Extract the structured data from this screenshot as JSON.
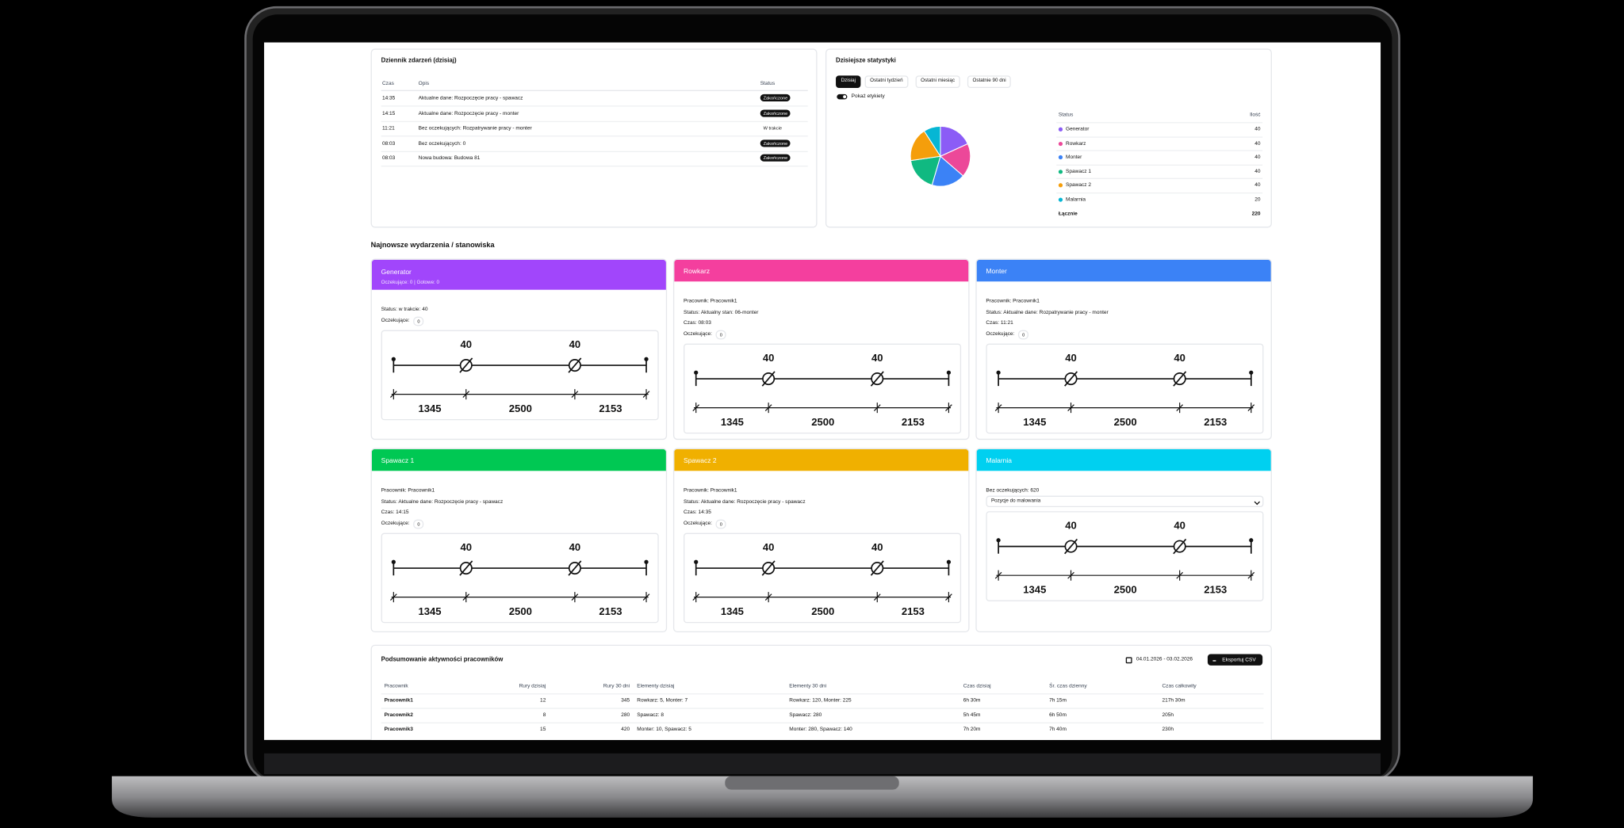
{
  "event_log": {
    "title": "Dziennik zdarzeń (dzisiaj)",
    "columns": [
      "Czas",
      "Opis",
      "Status"
    ],
    "rows": [
      [
        "14:35",
        "Aktualne dane: Rozpoczęcie pracy - spawacz",
        "Zakończone"
      ],
      [
        "14:15",
        "Aktualne dane: Rozpoczęcie pracy - monter",
        "Zakończone"
      ],
      [
        "11:21",
        "Bez oczekujących: Rozpatrywanie pracy - monter",
        "W trakcie"
      ],
      [
        "08:03",
        "Bez oczekujących: 0",
        "Zakończone"
      ],
      [
        "08:03",
        "Nowa budowa: Budowa 81",
        "Zakończone"
      ]
    ]
  },
  "stats": {
    "title": "Dzisiejsze statystyki",
    "tabs": [
      "Dzisiaj",
      "Ostatni tydzień",
      "Ostatni miesiąc",
      "Ostatnie 90 dni"
    ],
    "toggle": "Pokaż etykiety",
    "columns": [
      "Status",
      "Ilość"
    ],
    "rows": [
      {
        "name": "Generator",
        "color": "#8b5cf6",
        "value": 40
      },
      {
        "name": "Rowkarz",
        "color": "#ec4899",
        "value": 40
      },
      {
        "name": "Monter",
        "color": "#3b82f6",
        "value": 40
      },
      {
        "name": "Spawacz 1",
        "color": "#10b981",
        "value": 40
      },
      {
        "name": "Spawacz 2",
        "color": "#f59e0b",
        "value": 40
      },
      {
        "name": "Malarnia",
        "color": "#06b6d4",
        "value": 20
      }
    ],
    "total_label": "Łącznie",
    "total": 220
  },
  "stations_heading": "Najnowsze wydarzenia / stanowiska",
  "stations": [
    {
      "name": "Generator",
      "color": "#a146fb",
      "subtitle": "Oczekujące: 0 | Gotowe: 0",
      "lines": [
        "Status: w trakcie: 40"
      ],
      "waiting_label": "Oczekujące:",
      "waiting": 0,
      "diagram": {
        "top": [
          40,
          40
        ],
        "bottom": [
          1345,
          2500,
          2153
        ]
      }
    },
    {
      "name": "Rowkarz",
      "color": "#f43f9e",
      "lines": [
        "Pracownik: Pracownik1",
        "Status: Aktualny stan: 06-monter",
        "Czas: 08:03"
      ],
      "waiting_label": "Oczekujące:",
      "waiting": 0,
      "diagram": {
        "top": [
          40,
          40
        ],
        "bottom": [
          1345,
          2500,
          2153
        ]
      }
    },
    {
      "name": "Monter",
      "color": "#3b82f6",
      "lines": [
        "Pracownik: Pracownik1",
        "Status: Aktualne dane: Rozpatrywanie pracy - monter",
        "Czas: 11:21"
      ],
      "waiting_label": "Oczekujące:",
      "waiting": 0,
      "diagram": {
        "top": [
          40,
          40
        ],
        "bottom": [
          1345,
          2500,
          2153
        ]
      }
    },
    {
      "name": "Spawacz 1",
      "color": "#00c853",
      "lines": [
        "Pracownik: Pracownik1",
        "Status: Aktualne dane: Rozpoczęcie pracy - spawacz",
        "Czas: 14:15"
      ],
      "waiting_label": "Oczekujące:",
      "waiting": 0,
      "diagram": {
        "top": [
          40,
          40
        ],
        "bottom": [
          1345,
          2500,
          2153
        ]
      }
    },
    {
      "name": "Spawacz 2",
      "color": "#f0b000",
      "lines": [
        "Pracownik: Pracownik1",
        "Status: Aktualne dane: Rozpoczęcie pracy - spawacz",
        "Czas: 14:35"
      ],
      "waiting_label": "Oczekujące:",
      "waiting": 0,
      "diagram": {
        "top": [
          40,
          40
        ],
        "bottom": [
          1345,
          2500,
          2153
        ]
      }
    },
    {
      "name": "Malarnia",
      "color": "#00d0f0",
      "lines": [
        "Bez oczekujących: 620"
      ],
      "select": "Pozycje do malowania",
      "diagram": {
        "top": [
          40,
          40
        ],
        "bottom": [
          1345,
          2500,
          2153
        ]
      }
    }
  ],
  "summary": {
    "title": "Podsumowanie aktywności pracowników",
    "date_range": "04.01.2026 - 03.02.2026",
    "export": "Eksportuj CSV",
    "columns": [
      "Pracownik",
      "Rury dzisiaj",
      "Rury 30 dni",
      "Elementy dzisiaj",
      "Elementy 30 dni",
      "Czas dzisiaj",
      "Śr. czas dzienny",
      "Czas całkowity"
    ],
    "rows": [
      [
        "Pracownik1",
        12,
        345,
        "Rowkarz: 5, Monter: 7",
        "Rowkarz: 120, Monter: 225",
        "6h 30m",
        "7h 15m",
        "217h 30m"
      ],
      [
        "Pracownik2",
        8,
        280,
        "Spawacz: 8",
        "Spawacz: 280",
        "5h 45m",
        "6h 50m",
        "205h"
      ],
      [
        "Pracownik3",
        15,
        420,
        "Monter: 10, Spawacz: 5",
        "Monter: 280, Spawacz: 140",
        "7h 20m",
        "7h 40m",
        "230h"
      ]
    ]
  }
}
